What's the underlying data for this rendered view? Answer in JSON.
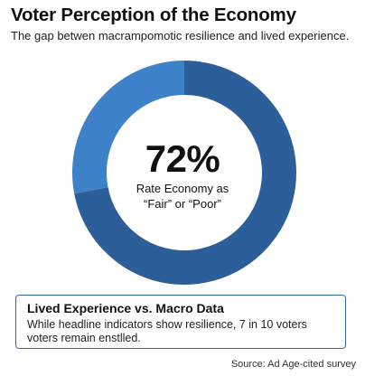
{
  "header": {
    "title": "Voter Perception of the Economy",
    "subtitle": "The gap betwen macrampomotic resilience and lived experience."
  },
  "center": {
    "value": "72%",
    "label_line1": "Rate Economy as",
    "label_line2": "“Fair” or “Poor”"
  },
  "callout": {
    "title": "Lived Experience vs. Macro Data",
    "body": "While headline indicators show resilience, 7 in 10 voters voters remain enstlled."
  },
  "source": "Source: Ad Age-cited survey",
  "chart_data": {
    "type": "pie",
    "style": "donut",
    "title": "Voter Perception of the Economy",
    "subtitle": "The gap betwen macrampomotic resilience and lived experience.",
    "center_value": "72%",
    "slices": [
      {
        "value": 72,
        "color": "#2c5f99"
      },
      {
        "value": 28,
        "color": "#3d82c8"
      }
    ],
    "legend": "none"
  }
}
